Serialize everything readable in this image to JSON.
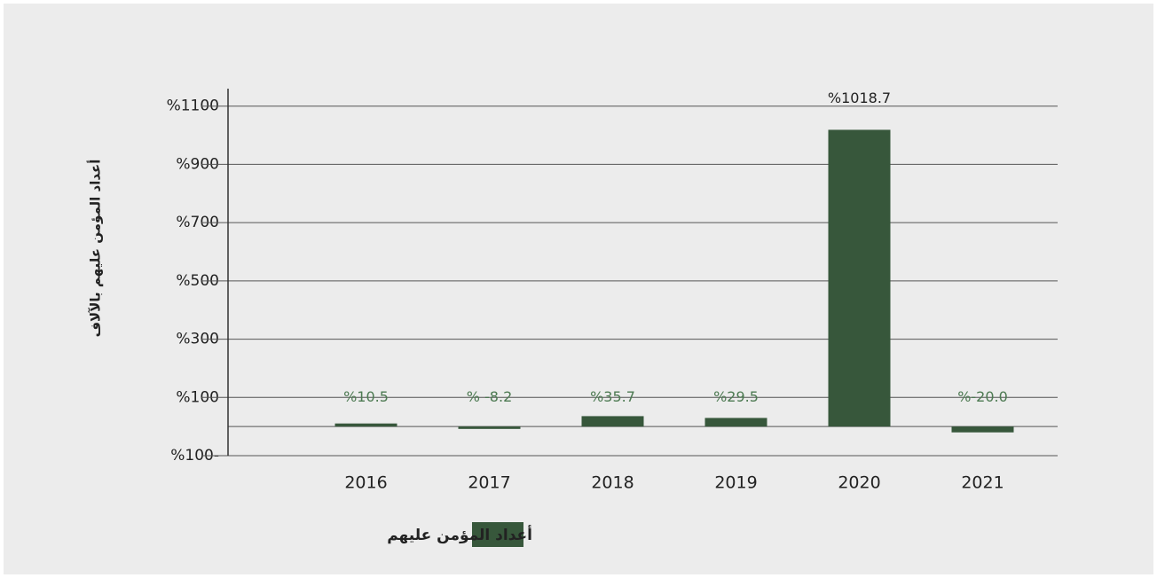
{
  "chart_data": {
    "type": "bar",
    "y_label": "أعداد المؤمن عليهم بالآلاف",
    "categories": [
      "2016",
      "2017",
      "2018",
      "2019",
      "2020",
      "2021"
    ],
    "series": [
      {
        "name": "أعداد المؤمن عليهم",
        "color": "#37573b",
        "values": [
          10.5,
          -8.2,
          35.7,
          29.5,
          1018.7,
          -20.0
        ],
        "value_labels": [
          "%10.5",
          "% -8.2",
          "%35.7",
          "%29.5",
          "%1018.7",
          "%-20.0"
        ]
      }
    ],
    "ylim": [
      -100,
      1160
    ],
    "yticks": [
      {
        "value": 1100,
        "label": "%1100"
      },
      {
        "value": 900,
        "label": "%900"
      },
      {
        "value": 700,
        "label": "%700"
      },
      {
        "value": 500,
        "label": "%500"
      },
      {
        "value": 300,
        "label": "%300"
      },
      {
        "value": 100,
        "label": "%100"
      },
      {
        "value": -100,
        "label": "%100-"
      }
    ],
    "grid": true,
    "legend": "bottom"
  }
}
